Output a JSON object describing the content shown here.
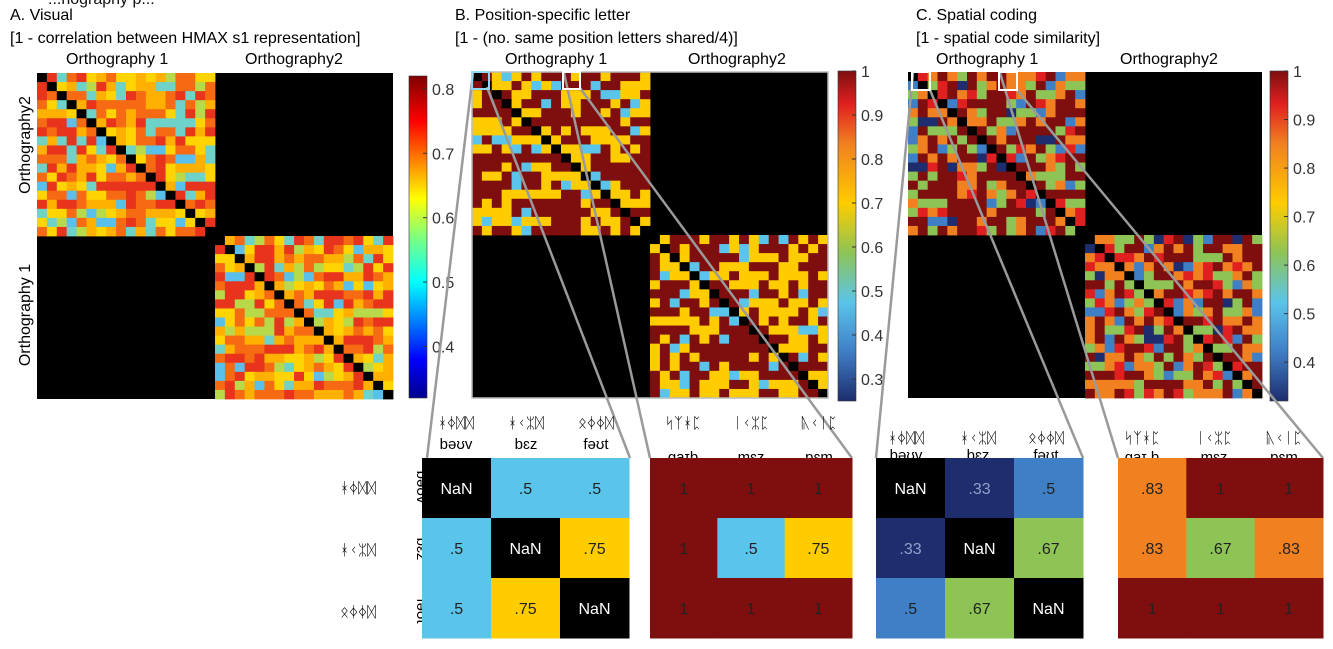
{
  "figure": {
    "top_label": "...hography p...",
    "nan_label": "NaN"
  },
  "colors": {
    "black": "#000000",
    "dark_red": "#7f0f0f",
    "light_blue": "#5bc4ea",
    "yellow_orange": "#ffcc00",
    "dark_navy": "#1d2d6e",
    "mid_blue": "#3f7fc6",
    "light_green": "#8ec455",
    "orange": "#f08020"
  },
  "panels": [
    {
      "id": "A",
      "title": "A. Visual",
      "subtitle": "[1 - correlation between HMAX s1 representation]",
      "top_labels": [
        "Orthography 1",
        "Orthography2"
      ],
      "left_labels": [
        "Orthography2",
        "Orthography 1"
      ],
      "colorbar_ticks": [
        "0.8",
        "0.7",
        "0.6",
        "0.5",
        "0.4"
      ],
      "colorbar_range": [
        0.32,
        0.82
      ]
    },
    {
      "id": "B",
      "title": "B. Position-specific letter",
      "subtitle": "[1 - (no. same position letters shared/4)]",
      "top_labels": [
        "Orthography 1",
        "Orthography2"
      ],
      "colorbar_ticks": [
        "1",
        "0.9",
        "0.8",
        "0.7",
        "0.6",
        "0.5",
        "0.4",
        "0.3"
      ],
      "colorbar_range": [
        0.25,
        1.0
      ]
    },
    {
      "id": "C",
      "title": "C. Spatial coding",
      "subtitle": "[1 - spatial code similarity]",
      "top_labels": [
        "Orthography 1",
        "Orthography2"
      ],
      "colorbar_ticks": [
        "1",
        "0.9",
        "0.8",
        "0.7",
        "0.6",
        "0.5",
        "0.4"
      ],
      "colorbar_range": [
        0.32,
        1.0
      ]
    }
  ],
  "word_sets": {
    "set1": {
      "glyphs": [
        "ᚼᛄᛞᛞ",
        "ᚼᚲᛯᛞ",
        "ᛟᛄᛄᛞ"
      ],
      "ipa": [
        "bəʊv",
        "bɛz",
        "fəʊt"
      ]
    },
    "set2": {
      "glyphs": [
        "ᛋᛉᚼᛈ",
        "ᛁᚲᛯᛈ",
        "ᚣᚲᛁᛈ"
      ],
      "ipa": [
        "gaɪb",
        "mɛz",
        "pɛm"
      ]
    },
    "set3_ipa": [
      "gaɪ b",
      "mɛz",
      "pɛm"
    ]
  },
  "zoom_matrices": [
    {
      "name": "B-within",
      "cells": [
        [
          "NaN",
          ".5",
          ".5"
        ],
        [
          ".5",
          "NaN",
          ".75"
        ],
        [
          ".5",
          ".75",
          "NaN"
        ]
      ],
      "colors": [
        [
          "black",
          "light_blue",
          "light_blue"
        ],
        [
          "light_blue",
          "black",
          "yellow_orange"
        ],
        [
          "light_blue",
          "yellow_orange",
          "black"
        ]
      ]
    },
    {
      "name": "B-between",
      "cells": [
        [
          "1",
          "1",
          "1"
        ],
        [
          "1",
          ".5",
          ".75"
        ],
        [
          "1",
          "1",
          "1"
        ]
      ],
      "colors": [
        [
          "dark_red",
          "dark_red",
          "dark_red"
        ],
        [
          "dark_red",
          "light_blue",
          "yellow_orange"
        ],
        [
          "dark_red",
          "dark_red",
          "dark_red"
        ]
      ]
    },
    {
      "name": "C-within",
      "cells": [
        [
          "NaN",
          ".33",
          ".5"
        ],
        [
          ".33",
          "NaN",
          ".67"
        ],
        [
          ".5",
          ".67",
          "NaN"
        ]
      ],
      "colors": [
        [
          "black",
          "dark_navy",
          "mid_blue"
        ],
        [
          "dark_navy",
          "black",
          "light_green"
        ],
        [
          "mid_blue",
          "light_green",
          "black"
        ]
      ]
    },
    {
      "name": "C-between",
      "cells": [
        [
          ".83",
          "1",
          "1"
        ],
        [
          ".83",
          ".67",
          ".83"
        ],
        [
          "1",
          "1",
          "1"
        ]
      ],
      "colors": [
        [
          "orange",
          "dark_red",
          "dark_red"
        ],
        [
          "orange",
          "light_green",
          "orange"
        ],
        [
          "dark_red",
          "dark_red",
          "dark_red"
        ]
      ]
    }
  ]
}
